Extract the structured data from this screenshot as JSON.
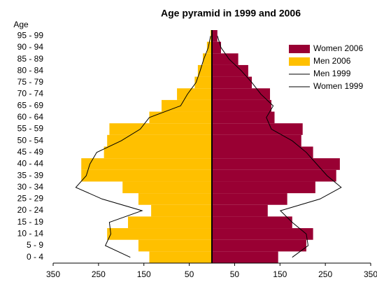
{
  "chart_data": {
    "type": "pyramid",
    "title": "Age pyramid in 1999 and 2006",
    "y_label": "Age",
    "categories": [
      "0 - 4",
      "5 - 9",
      "10 - 14",
      "15 - 19",
      "20 - 24",
      "25 - 29",
      "30 - 34",
      "35 - 39",
      "40 - 44",
      "45 - 49",
      "50 - 54",
      "55 - 59",
      "60 - 64",
      "65 - 69",
      "70 - 74",
      "75 - 79",
      "80 - 84",
      "85 - 89",
      "90 - 94",
      "95 - 99"
    ],
    "xlim": [
      -350,
      350
    ],
    "xticks": [
      {
        "value": -350,
        "label": "350"
      },
      {
        "value": -250,
        "label": "250"
      },
      {
        "value": -150,
        "label": "150"
      },
      {
        "value": -50,
        "label": "50"
      },
      50,
      150,
      250,
      350
    ],
    "legend": "top-right",
    "series": [
      {
        "name": "Women 2006",
        "type": "bar",
        "side": "right",
        "color": "#990033",
        "values": [
          146,
          208,
          223,
          177,
          123,
          166,
          228,
          274,
          282,
          223,
          197,
          200,
          138,
          131,
          128,
          88,
          80,
          58,
          20,
          12
        ]
      },
      {
        "name": "Men 2006",
        "type": "bar",
        "side": "left",
        "color": "#ffc000",
        "values": [
          138,
          162,
          231,
          185,
          134,
          162,
          197,
          288,
          288,
          238,
          231,
          226,
          138,
          111,
          77,
          38,
          31,
          20,
          11,
          3
        ]
      },
      {
        "name": "Men 1999",
        "type": "line",
        "side": "left",
        "color": "#000000",
        "values": [
          180,
          235,
          223,
          226,
          154,
          242,
          300,
          277,
          269,
          254,
          200,
          158,
          138,
          69,
          54,
          35,
          26,
          18,
          8,
          3
        ]
      },
      {
        "name": "Women 1999",
        "type": "line",
        "side": "right",
        "color": "#000000",
        "values": [
          177,
          212,
          208,
          177,
          151,
          238,
          285,
          254,
          231,
          208,
          177,
          131,
          120,
          135,
          108,
          88,
          65,
          38,
          20,
          12
        ]
      }
    ]
  }
}
